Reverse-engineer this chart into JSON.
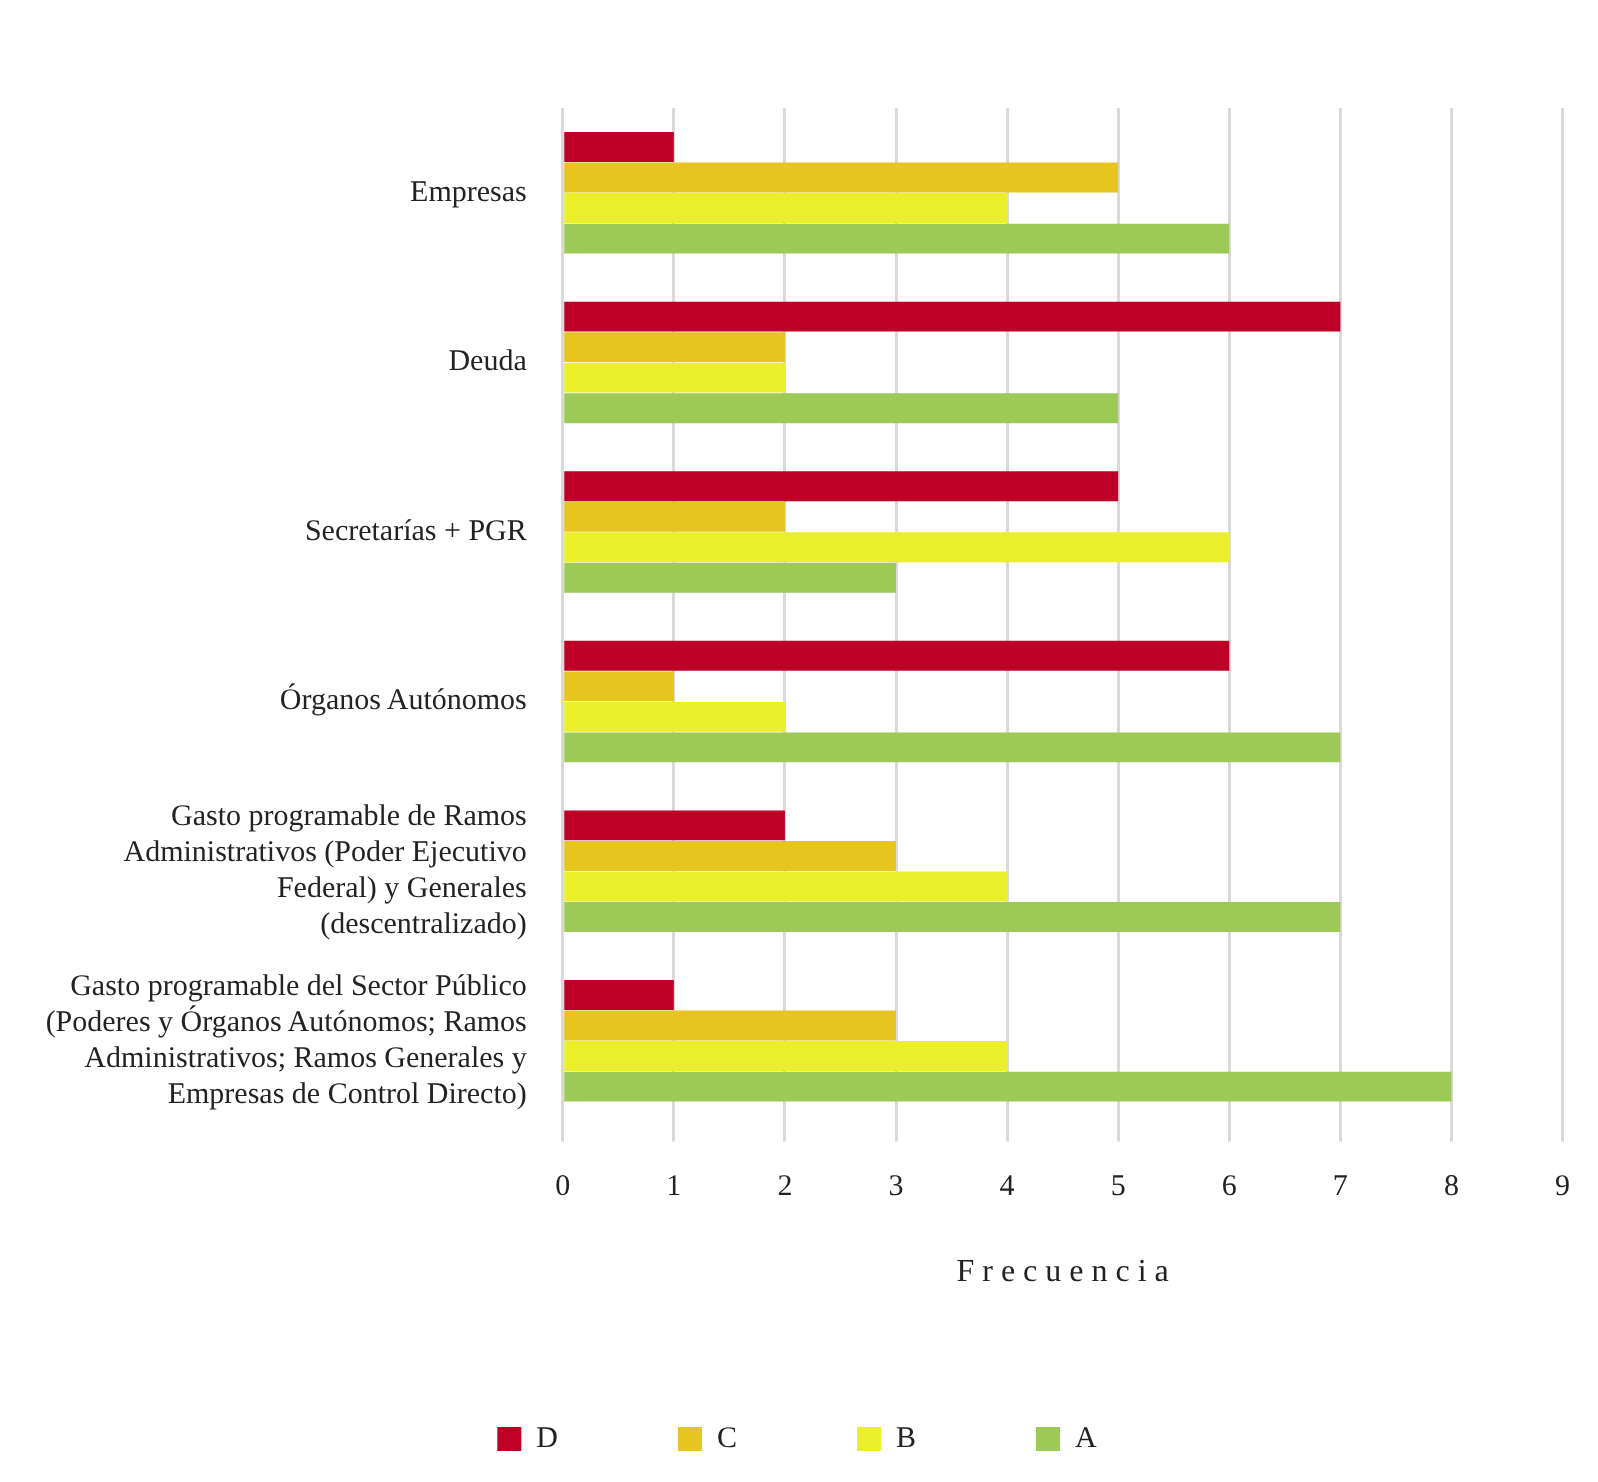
{
  "chart_data": {
    "type": "bar",
    "orientation": "horizontal",
    "xlabel": "F r e c u e n c i a",
    "categories": [
      "Empresas",
      "Deuda",
      "Secretarías + PGR",
      "Órganos Autónomos",
      "Gasto programable de Ramos Administrativos (Poder Ejecutivo Federal) y Generales (descentralizado)",
      "Gasto programable del Sector Público (Poderes y Órganos Autónomos; Ramos Administrativos; Ramos Generales y Empresas de Control Directo)"
    ],
    "series": [
      {
        "name": "D",
        "color": "#be0027",
        "values": [
          1,
          7,
          5,
          6,
          2,
          1
        ]
      },
      {
        "name": "C",
        "color": "#e6c520",
        "values": [
          5,
          2,
          2,
          1,
          3,
          3
        ]
      },
      {
        "name": "B",
        "color": "#ebee2b",
        "values": [
          4,
          2,
          6,
          2,
          4,
          4
        ]
      },
      {
        "name": "A",
        "color": "#9dc957",
        "values": [
          6,
          5,
          3,
          7,
          7,
          8
        ]
      }
    ],
    "xlim": [
      0,
      9
    ],
    "xticks": [
      0,
      1,
      2,
      3,
      4,
      5,
      6,
      7,
      8,
      9
    ],
    "grid": "x",
    "legend": "bottom"
  }
}
